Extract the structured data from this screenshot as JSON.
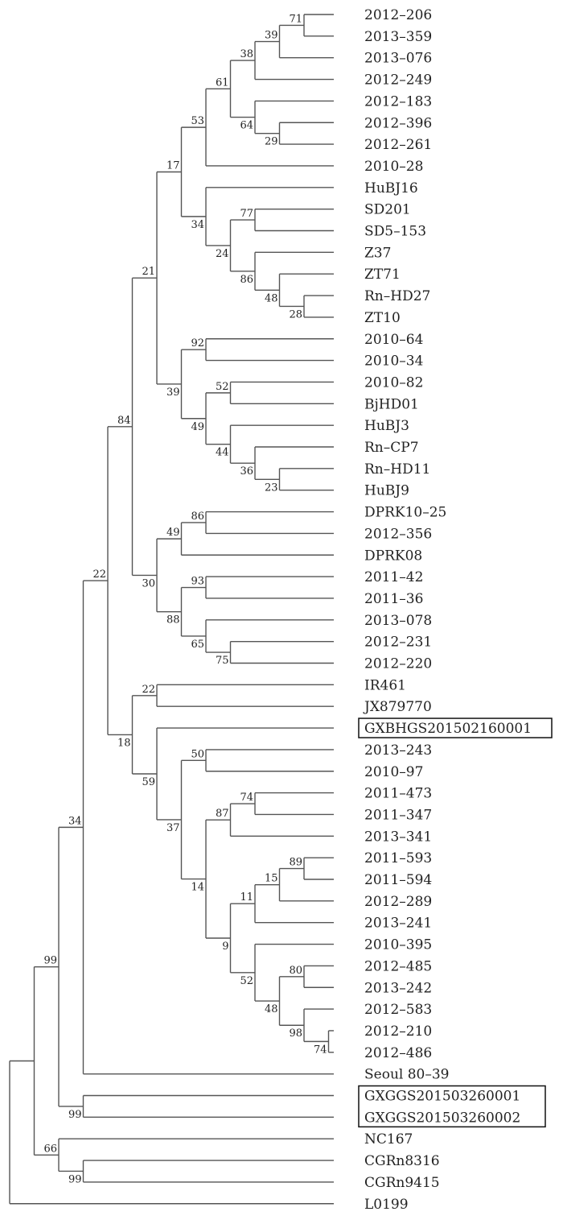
{
  "tree": {
    "label": "",
    "support": "99",
    "children": [
      {
        "label": "",
        "support": "34",
        "children": [
          {
            "label": "",
            "support": "22",
            "children": [
              {
                "label": "",
                "support": "84",
                "children": [
                  {
                    "label": "",
                    "support": "21",
                    "children": [
                      {
                        "label": "",
                        "support": "17",
                        "children": [
                          {
                            "label": "",
                            "support": "53",
                            "children": [
                              {
                                "label": "",
                                "support": "61",
                                "children": [
                                  {
                                    "label": "",
                                    "support": "38",
                                    "children": [
                                      {
                                        "label": "",
                                        "support": "39",
                                        "children": [
                                          {
                                            "label": "",
                                            "support": "71",
                                            "children": [
                                              {
                                                "label": "2012–206"
                                              },
                                              {
                                                "label": "2013–359"
                                              }
                                            ]
                                          },
                                          {
                                            "label": "2013–076"
                                          }
                                        ]
                                      },
                                      {
                                        "label": "2012–249"
                                      }
                                    ]
                                  },
                                  {
                                    "label": "",
                                    "support": "64",
                                    "children": [
                                      {
                                        "label": "2012–183"
                                      },
                                      {
                                        "label": "",
                                        "support": "29",
                                        "children": [
                                          {
                                            "label": "2012–396"
                                          },
                                          {
                                            "label": "2012–261"
                                          }
                                        ]
                                      }
                                    ]
                                  }
                                ]
                              },
                              {
                                "label": "2010–28"
                              }
                            ]
                          },
                          {
                            "label": "",
                            "support": "34",
                            "children": [
                              {
                                "label": "HuBJ16"
                              },
                              {
                                "label": "",
                                "support": "24",
                                "children": [
                                  {
                                    "label": "",
                                    "support": "77",
                                    "children": [
                                      {
                                        "label": "SD201"
                                      },
                                      {
                                        "label": "SD5–153"
                                      }
                                    ]
                                  },
                                  {
                                    "label": "",
                                    "support": "86",
                                    "children": [
                                      {
                                        "label": "Z37"
                                      },
                                      {
                                        "label": "",
                                        "support": "48",
                                        "children": [
                                          {
                                            "label": "ZT71"
                                          },
                                          {
                                            "label": "",
                                            "support": "28",
                                            "children": [
                                              {
                                                "label": "Rn–HD27"
                                              },
                                              {
                                                "label": "ZT10"
                                              }
                                            ]
                                          }
                                        ]
                                      }
                                    ]
                                  }
                                ]
                              }
                            ]
                          }
                        ]
                      },
                      {
                        "label": "",
                        "support": "39",
                        "children": [
                          {
                            "label": "",
                            "support": "92",
                            "children": [
                              {
                                "label": "2010–64"
                              },
                              {
                                "label": "2010–34"
                              }
                            ]
                          },
                          {
                            "label": "",
                            "support": "49",
                            "children": [
                              {
                                "label": "",
                                "support": "52",
                                "children": [
                                  {
                                    "label": "2010–82"
                                  },
                                  {
                                    "label": "BjHD01"
                                  }
                                ]
                              },
                              {
                                "label": "",
                                "support": "44",
                                "children": [
                                  {
                                    "label": "HuBJ3"
                                  },
                                  {
                                    "label": "",
                                    "support": "36",
                                    "children": [
                                      {
                                        "label": "Rn–CP7"
                                      },
                                      {
                                        "label": "",
                                        "support": "23",
                                        "children": [
                                          {
                                            "label": "Rn–HD11"
                                          },
                                          {
                                            "label": "HuBJ9"
                                          }
                                        ]
                                      }
                                    ]
                                  }
                                ]
                              }
                            ]
                          }
                        ]
                      }
                    ]
                  },
                  {
                    "label": "",
                    "support": "30",
                    "children": [
                      {
                        "label": "",
                        "support": "49",
                        "children": [
                          {
                            "label": "",
                            "support": "86",
                            "children": [
                              {
                                "label": "DPRK10–25"
                              },
                              {
                                "label": "2012–356"
                              }
                            ]
                          },
                          {
                            "label": "DPRK08"
                          }
                        ]
                      },
                      {
                        "label": "",
                        "support": "88",
                        "children": [
                          {
                            "label": "",
                            "support": "93",
                            "children": [
                              {
                                "label": "2011–42"
                              },
                              {
                                "label": "2011–36"
                              }
                            ]
                          },
                          {
                            "label": "",
                            "support": "65",
                            "children": [
                              {
                                "label": "2013–078"
                              },
                              {
                                "label": "",
                                "support": "75",
                                "children": [
                                  {
                                    "label": "2012–231"
                                  },
                                  {
                                    "label": "2012–220"
                                  }
                                ]
                              }
                            ]
                          }
                        ]
                      }
                    ]
                  }
                ]
              },
              {
                "label": "",
                "support": "18",
                "children": [
                  {
                    "label": "",
                    "support": "22",
                    "children": [
                      {
                        "label": "IR461"
                      },
                      {
                        "label": "JX879770"
                      }
                    ]
                  },
                  {
                    "label": "",
                    "support": "59",
                    "children": [
                      {
                        "label": "GXBHGS201502160001",
                        "boxed": true
                      },
                      {
                        "label": "",
                        "support": "37",
                        "children": [
                          {
                            "label": "",
                            "support": "50",
                            "children": [
                              {
                                "label": "2013–243"
                              },
                              {
                                "label": "2010–97"
                              }
                            ]
                          },
                          {
                            "label": "",
                            "support": "14",
                            "children": [
                              {
                                "label": "",
                                "support": "87",
                                "children": [
                                  {
                                    "label": "",
                                    "support": "74",
                                    "children": [
                                      {
                                        "label": "2011–473"
                                      },
                                      {
                                        "label": "2011–347"
                                      }
                                    ]
                                  },
                                  {
                                    "label": "2013–341"
                                  }
                                ]
                              },
                              {
                                "label": "",
                                "support": "9",
                                "children": [
                                  {
                                    "label": "",
                                    "support": "11",
                                    "children": [
                                      {
                                        "label": "",
                                        "support": "15",
                                        "children": [
                                          {
                                            "label": "",
                                            "support": "89",
                                            "children": [
                                              {
                                                "label": "2011–593"
                                              },
                                              {
                                                "label": "2011–594"
                                              }
                                            ]
                                          },
                                          {
                                            "label": "2012–289"
                                          }
                                        ]
                                      },
                                      {
                                        "label": "2013–241"
                                      }
                                    ]
                                  },
                                  {
                                    "label": "",
                                    "support": "52",
                                    "children": [
                                      {
                                        "label": "2010–395"
                                      },
                                      {
                                        "label": "",
                                        "support": "48",
                                        "children": [
                                          {
                                            "label": "",
                                            "support": "80",
                                            "children": [
                                              {
                                                "label": "2012–485"
                                              },
                                              {
                                                "label": "2013–242"
                                              }
                                            ]
                                          },
                                          {
                                            "label": "",
                                            "support": "98",
                                            "children": [
                                              {
                                                "label": "2012–583"
                                              },
                                              {
                                                "label": "",
                                                "support": "74",
                                                "children": [
                                                  {
                                                    "label": "2012–210"
                                                  },
                                                  {
                                                    "label": "2012–486"
                                                  }
                                                ]
                                              }
                                            ]
                                          }
                                        ]
                                      }
                                    ]
                                  }
                                ]
                              }
                            ]
                          }
                        ]
                      }
                    ]
                  }
                ]
              }
            ]
          },
          {
            "label": "Seoul 80–39"
          }
        ]
      },
      {
        "label": "",
        "support": "99",
        "boxed": true,
        "children": [
          {
            "label": "GXGGS201503260001"
          },
          {
            "label": "GXGGS201503260002"
          }
        ]
      }
    ]
  },
  "tree_outgroup_parent": {
    "label": "",
    "support": "66",
    "children": [
      {
        "label": "NC167"
      },
      {
        "label": "",
        "support": "99",
        "children": [
          {
            "label": "CGRn8316"
          },
          {
            "label": "CGRn9415"
          }
        ]
      }
    ]
  },
  "tree_root_outgroup": {
    "label": "L0199"
  }
}
